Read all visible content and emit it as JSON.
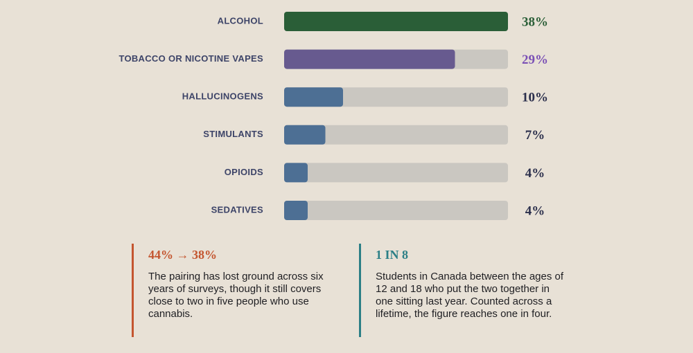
{
  "chart_data": {
    "type": "bar",
    "categories": [
      "ALCOHOL",
      "TOBACCO OR NICOTINE VAPES",
      "HALLUCINOGENS",
      "STIMULANTS",
      "OPIOIDS",
      "SEDATIVES"
    ],
    "values": [
      38,
      29,
      10,
      7,
      4,
      4
    ],
    "value_labels": [
      "38%",
      "29%",
      "10%",
      "7%",
      "4%",
      "4%"
    ],
    "colors": [
      "#2a5e37",
      "#675a8f",
      "#4d6f94",
      "#4d6f94",
      "#4d6f94",
      "#4d6f94"
    ],
    "label_colors": [
      "#2a5e37",
      "#7a4fb5",
      "#2b2f4c",
      "#2b2f4c",
      "#2b2f4c",
      "#2b2f4c"
    ],
    "track_color": "#cac7c1"
  },
  "annotations": [
    {
      "heading": "44% → 38%",
      "text": "The pairing has lost ground across six years of surveys, though it still covers close to two in five people who use cannabis.",
      "color": "#c4552f"
    },
    {
      "heading": "1 IN 8",
      "text": "Students in Canada between the ages of 12 and 18 who put the two together in one sitting last year. Counted across a lifetime, the figure reaches one in four.",
      "color": "#2b7f86"
    }
  ]
}
